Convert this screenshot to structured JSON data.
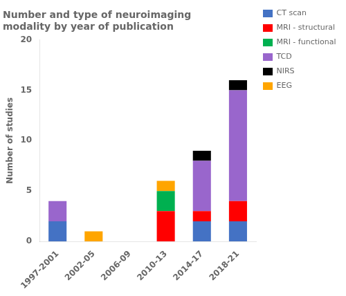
{
  "chart_data": {
    "type": "bar",
    "stacked": true,
    "title": "Number and type of neuroimaging\nmodality by year of publication",
    "ylabel": "Number of studies",
    "categories": [
      "1997-2001",
      "2002-05",
      "2006-09",
      "2010-13",
      "2014-17",
      "2018-21"
    ],
    "series": [
      {
        "name": "CT scan",
        "color": "#4472C4",
        "values": [
          2,
          0,
          0,
          0,
          2,
          2
        ]
      },
      {
        "name": "MRI - structural",
        "color": "#FF0000",
        "values": [
          0,
          0,
          0,
          3,
          1,
          2
        ]
      },
      {
        "name": "MRI - functional",
        "color": "#00B050",
        "values": [
          0,
          0,
          0,
          2,
          0,
          0
        ]
      },
      {
        "name": "TCD",
        "color": "#9966CC",
        "values": [
          2,
          0,
          0,
          0,
          5,
          11
        ]
      },
      {
        "name": "NIRS",
        "color": "#000000",
        "values": [
          0,
          0,
          0,
          0,
          1,
          1
        ]
      },
      {
        "name": "EEG",
        "color": "#FFA500",
        "values": [
          0,
          1,
          0,
          1,
          0,
          0
        ]
      }
    ],
    "ylim": [
      0,
      20
    ],
    "yticks": [
      0,
      5,
      10,
      15,
      20
    ],
    "grid": false,
    "legend": "right"
  }
}
